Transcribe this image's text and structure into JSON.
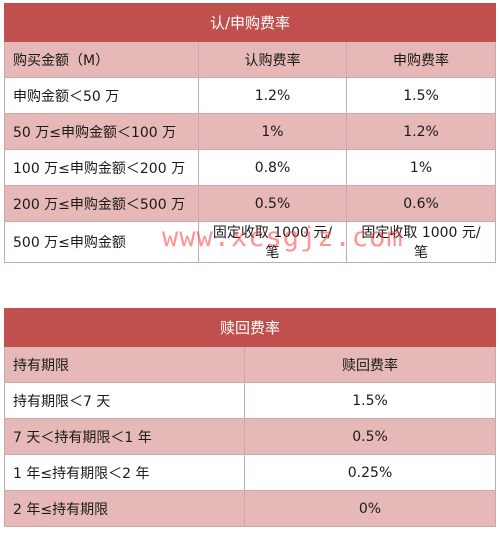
{
  "table1": {
    "title": "认/申购费率",
    "headers": [
      "购买金额（M）",
      "认购费率",
      "申购费率"
    ],
    "rows": [
      [
        "申购金额＜50 万",
        "1.2%",
        "1.5%"
      ],
      [
        "50 万≤申购金额＜100 万",
        "1%",
        "1.2%"
      ],
      [
        "100 万≤申购金额＜200 万",
        "0.8%",
        "1%"
      ],
      [
        "200 万≤申购金额＜500 万",
        "0.5%",
        "0.6%"
      ],
      [
        "500 万≤申购金额",
        "固定收取 1000 元/笔",
        "固定收取 1000 元/笔"
      ]
    ]
  },
  "table2": {
    "title": "赎回费率",
    "headers": [
      "持有期限",
      "赎回费率"
    ],
    "rows": [
      [
        "持有期限＜7 天",
        "1.5%"
      ],
      [
        "7 天＜持有期限＜1 年",
        "0.5%"
      ],
      [
        "1 年≤持有期限＜2 年",
        "0.25%"
      ],
      [
        "2 年≤持有期限",
        "0%"
      ]
    ]
  },
  "watermark": "www.xcsgjz.com"
}
